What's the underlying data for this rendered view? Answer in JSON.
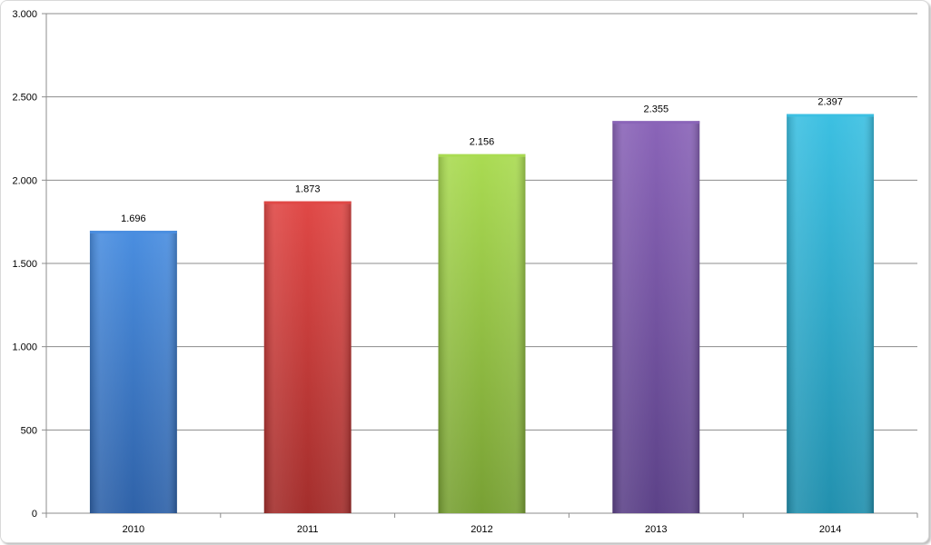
{
  "chart_data": {
    "type": "bar",
    "categories": [
      "2010",
      "2011",
      "2012",
      "2013",
      "2014"
    ],
    "values": [
      1696,
      1873,
      2156,
      2355,
      2397
    ],
    "value_labels": [
      "1.696",
      "1.873",
      "2.156",
      "2.355",
      "2.397"
    ],
    "y_ticks": [
      0,
      500,
      1000,
      1500,
      2000,
      2500,
      3000
    ],
    "y_tick_labels": [
      "0",
      "500",
      "1.000",
      "1.500",
      "2.000",
      "2.500",
      "3.000"
    ],
    "ylim": [
      0,
      3000
    ],
    "grid": true,
    "legend": "none",
    "title": "",
    "xlabel": "",
    "ylabel": "",
    "colors": [
      {
        "light": "#4a8ee0",
        "dark": "#2f62a8"
      },
      {
        "light": "#e04846",
        "dark": "#a32e2c"
      },
      {
        "light": "#aadb52",
        "dark": "#78a034"
      },
      {
        "light": "#8a64b8",
        "dark": "#5c4288"
      },
      {
        "light": "#3cc0e2",
        "dark": "#2290ae"
      }
    ]
  }
}
